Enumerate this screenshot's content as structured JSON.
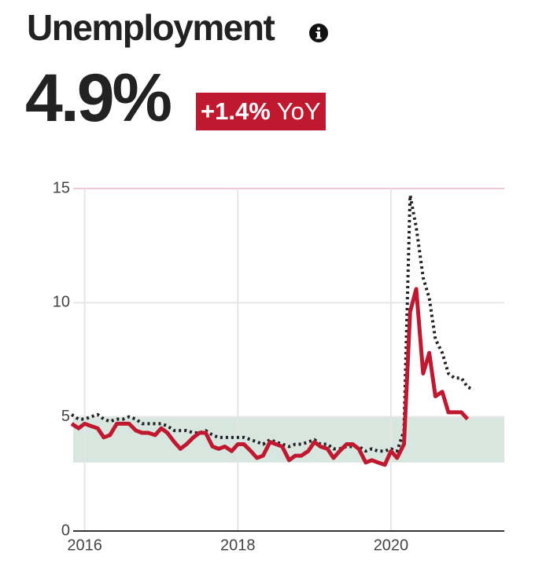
{
  "header": {
    "title": "Unemployment",
    "value": "4.9%",
    "change": "+1.4%",
    "change_label": "YoY"
  },
  "chart_data": {
    "type": "line",
    "x": [
      2015.83,
      2015.92,
      2016.0,
      2016.08,
      2016.17,
      2016.25,
      2016.33,
      2016.42,
      2016.5,
      2016.58,
      2016.67,
      2016.75,
      2016.83,
      2016.92,
      2017.0,
      2017.08,
      2017.17,
      2017.25,
      2017.33,
      2017.42,
      2017.5,
      2017.58,
      2017.67,
      2017.75,
      2017.83,
      2017.92,
      2018.0,
      2018.08,
      2018.17,
      2018.25,
      2018.33,
      2018.42,
      2018.5,
      2018.58,
      2018.67,
      2018.75,
      2018.83,
      2018.92,
      2019.0,
      2019.08,
      2019.17,
      2019.25,
      2019.33,
      2019.42,
      2019.5,
      2019.58,
      2019.67,
      2019.75,
      2019.83,
      2019.92,
      2020.0,
      2020.08,
      2020.17,
      2020.25,
      2020.33,
      2020.42,
      2020.5,
      2020.58,
      2020.67,
      2020.75,
      2020.83,
      2020.92,
      2021.0,
      2021.08
    ],
    "series": [
      {
        "color": "#222222",
        "dashed": true,
        "values": [
          5.1,
          4.9,
          4.9,
          5.0,
          5.1,
          4.9,
          4.8,
          4.9,
          4.9,
          5.0,
          4.9,
          4.7,
          4.7,
          4.7,
          4.7,
          4.6,
          4.4,
          4.4,
          4.4,
          4.3,
          4.3,
          4.4,
          4.2,
          4.1,
          4.1,
          4.1,
          4.1,
          4.1,
          4.0,
          3.9,
          3.8,
          4.0,
          3.9,
          3.8,
          3.7,
          3.8,
          3.8,
          3.9,
          4.0,
          3.8,
          3.8,
          3.6,
          3.6,
          3.7,
          3.7,
          3.7,
          3.5,
          3.6,
          3.5,
          3.5,
          3.6,
          3.5,
          4.4,
          14.7,
          13.3,
          11.1,
          10.2,
          8.4,
          7.8,
          6.9,
          6.7,
          6.7,
          6.3,
          6.2
        ]
      },
      {
        "color": "#c0182f",
        "dashed": false,
        "values": [
          4.7,
          4.5,
          4.7,
          4.6,
          4.5,
          4.1,
          4.2,
          4.7,
          4.7,
          4.7,
          4.4,
          4.3,
          4.3,
          4.2,
          4.5,
          4.3,
          3.9,
          3.6,
          3.8,
          4.1,
          4.3,
          4.3,
          3.7,
          3.6,
          3.7,
          3.5,
          3.8,
          3.8,
          3.5,
          3.2,
          3.3,
          3.9,
          3.8,
          3.7,
          3.1,
          3.3,
          3.3,
          3.5,
          3.9,
          3.7,
          3.6,
          3.2,
          3.5,
          3.8,
          3.8,
          3.6,
          3.0,
          3.1,
          3.0,
          2.9,
          3.5,
          3.2,
          3.8,
          9.6,
          10.6,
          6.9,
          7.8,
          5.9,
          6.1,
          5.2,
          5.2,
          5.2,
          4.9,
          null
        ]
      }
    ],
    "xlim": [
      2015.85,
      2021.48
    ],
    "xticks": [
      2016,
      2018,
      2020
    ],
    "ylim": [
      0,
      15
    ],
    "yticks": [
      0,
      5,
      10,
      15
    ],
    "grid": true,
    "band": [
      3,
      5
    ],
    "band_color": "#d7e7e0"
  }
}
